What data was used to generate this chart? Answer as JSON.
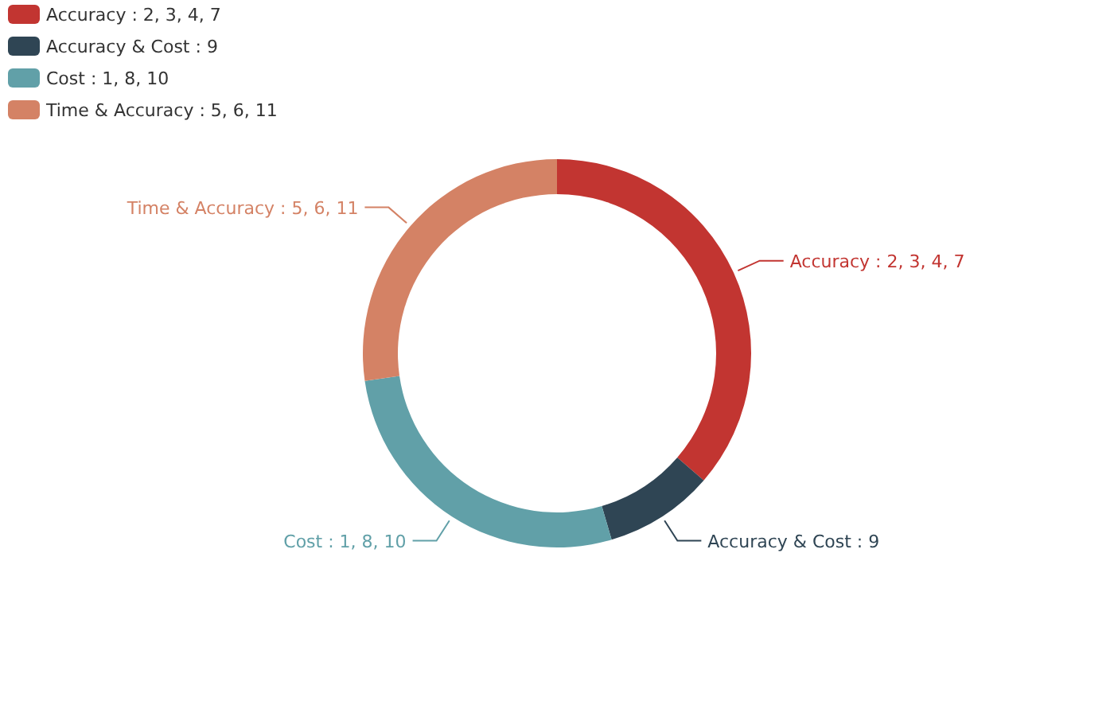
{
  "chart_data": {
    "type": "donut",
    "categories": [
      "Accuracy : 2, 3, 4, 7",
      "Accuracy & Cost : 9",
      "Cost : 1, 8, 10",
      "Time & Accuracy : 5, 6, 11"
    ],
    "values": [
      36.36,
      9.1,
      27.27,
      27.27
    ],
    "colors": [
      "#c23531",
      "#2f4554",
      "#61a0a8",
      "#d48265"
    ],
    "legend": "top left"
  }
}
